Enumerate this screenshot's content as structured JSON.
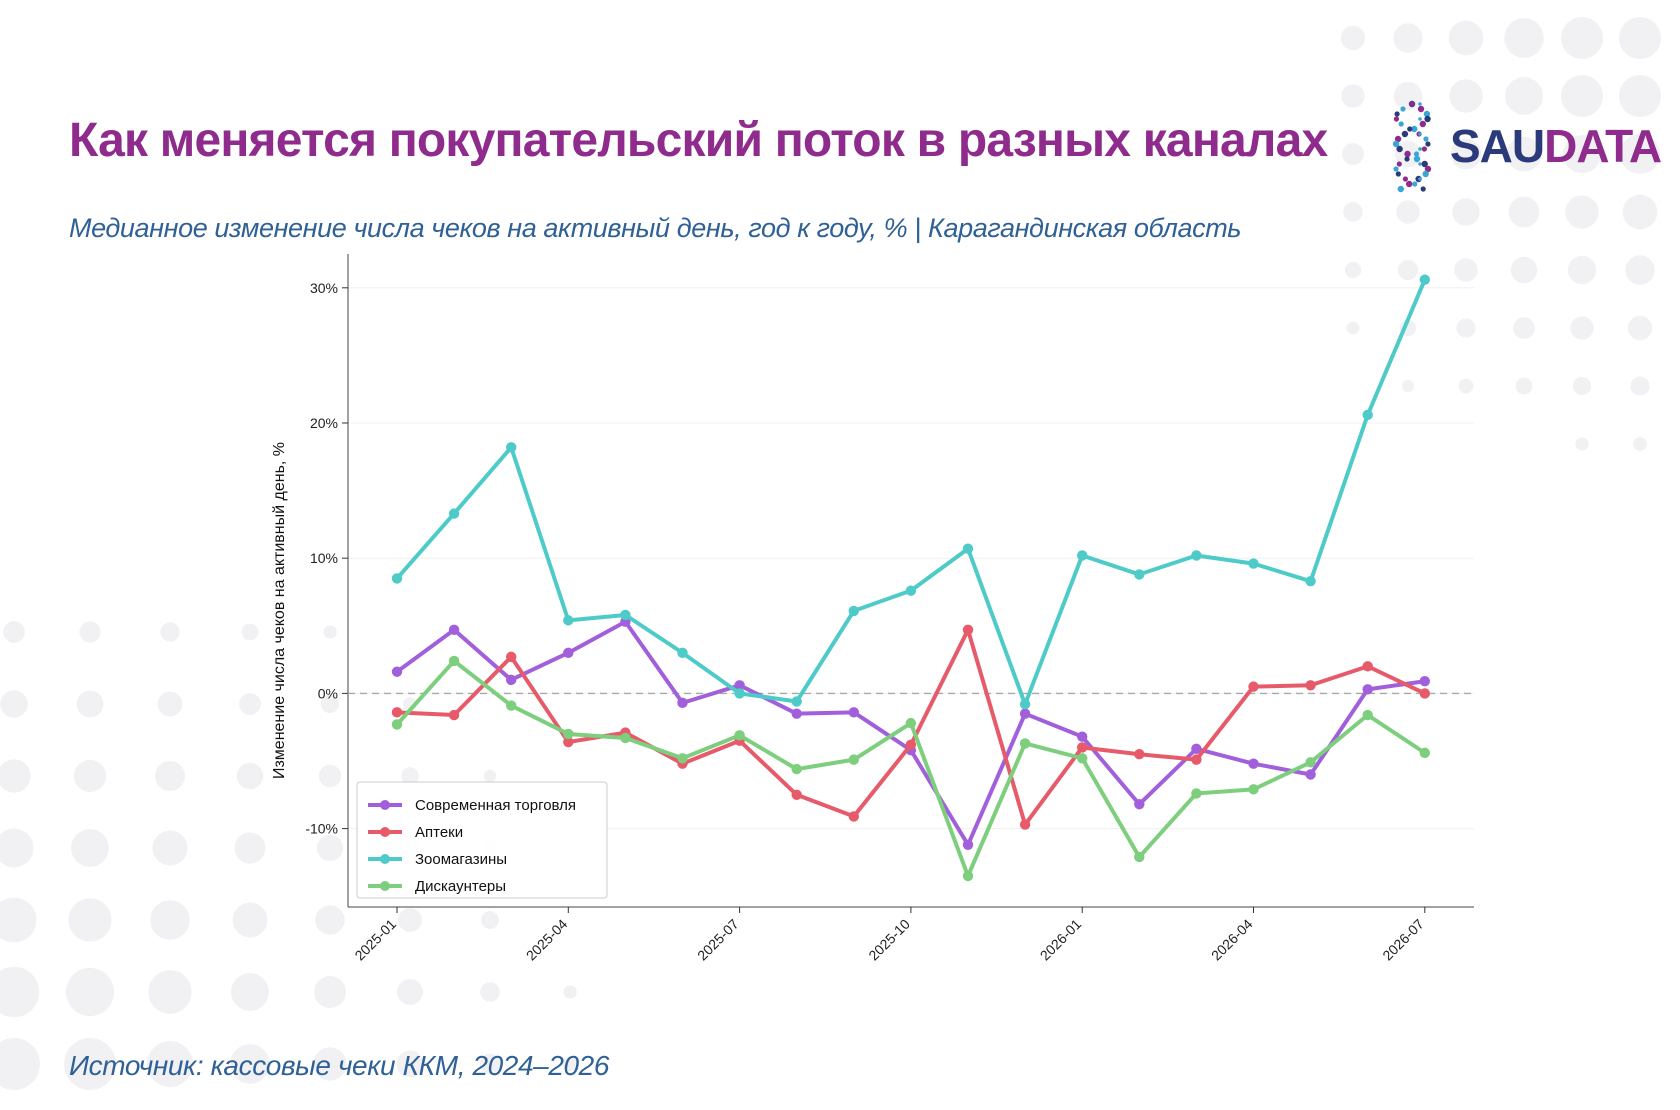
{
  "header": {
    "title": "Как меняется покупательский поток в разных каналах",
    "subtitle": "Медианное изменение числа чеков на активный день, год к году, % | Карагандинская область"
  },
  "footer": {
    "source": "Источник: кассовые чеки ККМ, 2024–2026"
  },
  "logo": {
    "text_part1": "SAU",
    "text_part2": "DATA",
    "icon": "dna-helix-icon"
  },
  "colors": {
    "title": "#8e2b8c",
    "subtitle": "#2f6196",
    "decor_dots": "#f1f1f4"
  },
  "chart_data": {
    "type": "line",
    "ylabel": "Изменение числа чеков на активный день, %",
    "xlabel": "",
    "x": [
      "2025-01",
      "2025-02",
      "2025-03",
      "2025-04",
      "2025-05",
      "2025-06",
      "2025-07",
      "2025-08",
      "2025-09",
      "2025-10",
      "2025-11",
      "2025-12",
      "2026-01",
      "2026-02",
      "2026-03",
      "2026-04",
      "2026-05",
      "2026-06",
      "2026-07"
    ],
    "x_tick_labels": [
      "2025-01",
      "2025-04",
      "2025-07",
      "2025-10",
      "2026-01",
      "2026-04",
      "2026-07"
    ],
    "ylim": [
      -15.8,
      32.5
    ],
    "y_ticks": [
      -10,
      0,
      10,
      20,
      30
    ],
    "y_tick_labels": [
      "-10%",
      "0%",
      "10%",
      "20%",
      "30%"
    ],
    "reference_line": {
      "y": 0,
      "style": "dashed",
      "color": "#a8a8a8"
    },
    "grid": "horizontal-light",
    "legend_position": "lower-left",
    "series": [
      {
        "name": "Современная торговля",
        "color": "#a25fdc",
        "values": [
          1.6,
          4.7,
          1.0,
          3.0,
          5.3,
          -0.7,
          0.6,
          -1.5,
          -1.4,
          -4.2,
          -11.2,
          -1.5,
          -3.2,
          -8.2,
          -4.1,
          -5.2,
          -6.0,
          0.3,
          0.9
        ]
      },
      {
        "name": "Аптеки",
        "color": "#e75a6a",
        "values": [
          -1.4,
          -1.6,
          2.7,
          -3.6,
          -2.9,
          -5.2,
          -3.5,
          -7.5,
          -9.1,
          -3.8,
          4.7,
          -9.7,
          -4.0,
          -4.5,
          -4.9,
          0.5,
          0.6,
          2.0,
          0.0
        ]
      },
      {
        "name": "Зоомагазины",
        "color": "#4ecbc8",
        "values": [
          8.5,
          13.3,
          18.2,
          5.4,
          5.8,
          3.0,
          0.0,
          -0.6,
          6.1,
          7.6,
          10.7,
          -0.8,
          10.2,
          8.8,
          10.2,
          9.6,
          8.3,
          20.6,
          30.6
        ]
      },
      {
        "name": "Дискаунтеры",
        "color": "#7dce7d",
        "values": [
          -2.3,
          2.4,
          -0.9,
          -3.0,
          -3.3,
          -4.8,
          -3.1,
          -5.6,
          -4.9,
          -2.2,
          -13.5,
          -3.7,
          -4.8,
          -12.1,
          -7.4,
          -7.1,
          -5.1,
          -1.6,
          -4.4
        ]
      }
    ]
  }
}
